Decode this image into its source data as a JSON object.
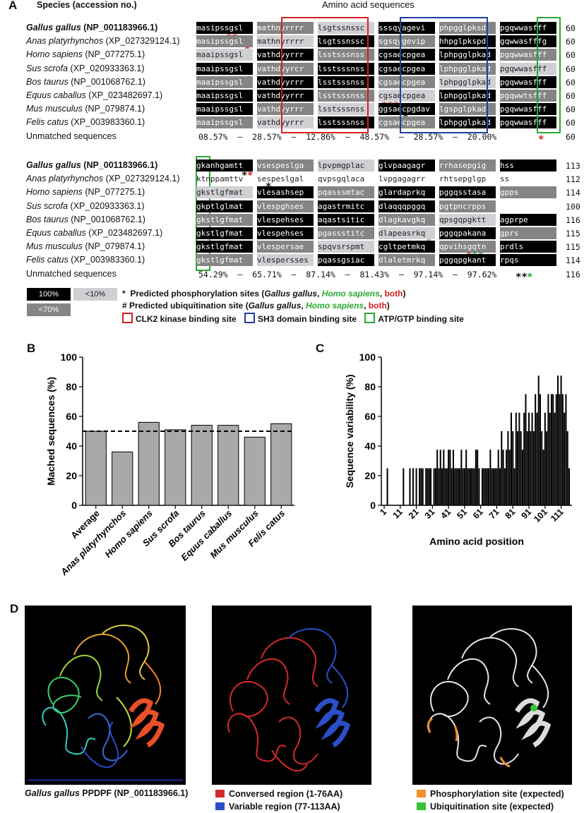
{
  "panelA": {
    "letter": "A",
    "species_header": "Species (accession no.)",
    "seq_header": "Amino acid sequences",
    "block1": {
      "rows": [
        {
          "genus": "Gallus gallus",
          "acc": "(NP_001183966.1)",
          "bold": true,
          "seq": "masipssgsl mathnyrrrr lsgtssnssc sssqyagevi phpgglpksd pgqwwasfff",
          "end": "60"
        },
        {
          "genus": "Anas platyrhynchos",
          "acc": "(XP_027329124.1)",
          "bold": false,
          "seq": "masipssgsl mathnyrrrr lsgtssnssc sgsqygevip hhpglpkspd gqwwasfffg",
          "end": "60"
        },
        {
          "genus": "Homo sapiens",
          "acc": "(NP_077275.1)",
          "bold": false,
          "seq": "maaipssgsl vathdyyrrr lsstsssnss cgsaecpgea lphpgglpkad pgqwwasfff",
          "end": "60"
        },
        {
          "genus": "Sus scrofa",
          "acc": "(XP_020933363.1)",
          "bold": false,
          "seq": "maaipssgsl vathdyyrcr lsstsssnss cgsaecpgea lphpgglpkad pgqwwasfff",
          "end": "60"
        },
        {
          "genus": "Bos taurus",
          "acc": "(NP_001068762.1)",
          "bold": false,
          "seq": "maaipssgsl vathdyyrrr lsstsssnss cgsaecpgea lphpgglpkad pgqwwasfff",
          "end": "60"
        },
        {
          "genus": "Equus caballus",
          "acc": "(XP_023482697.1)",
          "bold": false,
          "seq": "maaipssgsl vathdyyrrr lsstsssnss cgsaecpgea lphpgglpkad pgqwwtsfff",
          "end": "60"
        },
        {
          "genus": "Mus musculus",
          "acc": "(NP_079874.1)",
          "bold": false,
          "seq": "maaipssgsl vathdyyrrr lsstsssnss ggsaecpgdav lgspglpkad pgqwwasfff",
          "end": "60"
        },
        {
          "genus": "Felis catus",
          "acc": "(XP_003983360.1)",
          "bold": false,
          "seq": "maaipssgsl vathdyyrrr lsstsssnss cgsaecpgea lphpgglpkad pgqwwasfff",
          "end": "60"
        }
      ],
      "unmatched": {
        "label": "Unmatched sequences",
        "text": "08.57%  –  28.57%  –  12.86%  –  48.57%  –  28.57%  –  20.00%",
        "end": "60"
      }
    },
    "block2": {
      "rows": [
        {
          "genus": "Gallus gallus",
          "acc": "(NP_001183966.1)",
          "bold": true,
          "seq": "gkanhgamtt vsespeslga lpvpmgplac glvpaagagr rrhasepgig hss",
          "end": "113"
        },
        {
          "genus": "Anas platyrhynchos",
          "acc": "(XP_027329124.1)",
          "bold": false,
          "seq": "ktnppamttv sespeslgal qvpsgqlaca lvpgagagrr rhtsepglgp ss",
          "end": "112"
        },
        {
          "genus": "Homo sapiens",
          "acc": "(NP_077275.1)",
          "bold": false,
          "seq": "gkstlgfmat vlesashsep pqasssmtac glardaprkq pggqsstasa gpps",
          "end": "114"
        },
        {
          "genus": "Sus scrofa",
          "acc": "(XP_020933363.1)",
          "bold": false,
          "seq": "gkptlglmat vlespghses agastrmitc dlaqqqpggq pgtpncrpps",
          "end": "100"
        },
        {
          "genus": "Bos taurus",
          "acc": "(NP_001068762.1)",
          "bold": false,
          "seq": "gkstlgfmat vlespehses aqastsitic dlagkavgkq qpsgqpgktt agprpe",
          "end": "116"
        },
        {
          "genus": "Equus caballus",
          "acc": "(XP_023482697.1)",
          "bold": false,
          "seq": "gkstlgfmat vlespehses pgassstitc dlapeasrkq pggqpakana gprs",
          "end": "115"
        },
        {
          "genus": "Mus musculus",
          "acc": "(NP_079874.1)",
          "bold": false,
          "seq": "gkstlgfmat vlespersae spqvsrspmt cgltpetmkq qpvihsgqtn prdls",
          "end": "115"
        },
        {
          "genus": "Felis catus",
          "acc": "(XP_003983360.1)",
          "bold": false,
          "seq": "gkstlgfmat vlespersses pqassgsiac dlaletmrkq pggqpgkant rpqs",
          "end": "114"
        }
      ],
      "unmatched": {
        "label": "Unmatched sequences",
        "text": "54.29%  –  65.71%  –  87.14%  –  81.43%  –  97.14%  –  97.62%",
        "end": "116"
      }
    },
    "legend": {
      "box100": "100%",
      "box10": "<10%",
      "box70": "<70%",
      "phospho_prefix": "Predicted phosphorylation sites (",
      "ubiq_prefix": "Predicted ubiquitination site  (",
      "sp1": "Gallus gallus",
      "sp2": "Homo sapiens",
      "both": "both",
      "clk2": "CLK2 kinase binding site",
      "sh3": "SH3 domain binding site",
      "atp": "ATP/GTP binding site",
      "colors": {
        "clk2": "#d42020",
        "sh3": "#1f3f9e",
        "atp": "#2aa832"
      }
    }
  },
  "panelB": {
    "letter": "B",
    "chart_data": {
      "type": "bar",
      "categories": [
        "Average",
        "Anas platyrhynchos",
        "Homo sapiens",
        "Sus scrofa",
        "Bos taurus",
        "Equus caballus",
        "Mus musculus",
        "Felis catus"
      ],
      "values": [
        50,
        36,
        56,
        51,
        54,
        54,
        46,
        55
      ],
      "title": "",
      "xlabel": "",
      "ylabel": "Mached sequences (%)",
      "ylim": [
        0,
        100
      ],
      "yticks": [
        "0",
        "20",
        "40",
        "60",
        "80",
        "100"
      ],
      "reference_line": 50,
      "bar_color": "#a9a9a9"
    }
  },
  "panelC": {
    "letter": "C",
    "chart_data": {
      "type": "bar",
      "title": "",
      "xlabel": "Amino acid position",
      "ylabel": "Sequence variability (%)",
      "ylim": [
        0,
        100
      ],
      "xlim": [
        1,
        116
      ],
      "yticks": [
        "0",
        "20",
        "40",
        "60",
        "80",
        "100"
      ],
      "xticks": [
        "1",
        "11",
        "21",
        "31",
        "41",
        "51",
        "61",
        "71",
        "81",
        "91",
        "101",
        "111"
      ],
      "positions_start": 1,
      "values": [
        0,
        0,
        25,
        0,
        0,
        0,
        0,
        0,
        0,
        0,
        0,
        0,
        25,
        0,
        0,
        0,
        25,
        0,
        25,
        0,
        25,
        0,
        25,
        25,
        25,
        0,
        25,
        25,
        25,
        25,
        0,
        25,
        25,
        37.5,
        25,
        37.5,
        25,
        37.5,
        25,
        25,
        37.5,
        37.5,
        25,
        37.5,
        25,
        25,
        25,
        25,
        37.5,
        25,
        25,
        37.5,
        25,
        25,
        25,
        25,
        25,
        37.5,
        37.5,
        25,
        0,
        25,
        25,
        25,
        25,
        25,
        37.5,
        25,
        25,
        25,
        25,
        37.5,
        25,
        50,
        37.5,
        25,
        37.5,
        50,
        37.5,
        62.5,
        50,
        25,
        62.5,
        50,
        62.5,
        50,
        37.5,
        62.5,
        75,
        50,
        62.5,
        50,
        62.5,
        50,
        75,
        62.5,
        87.5,
        75,
        50,
        37.5,
        62.5,
        50,
        75,
        62.5,
        75,
        75,
        62.5,
        75,
        87.5,
        75,
        87.5,
        75,
        62.5,
        75,
        50,
        25
      ]
    }
  },
  "panelD": {
    "letter": "D",
    "caption_genus": "Gallus gallus",
    "caption_rest": " PPDPF (NP_001183966.1)",
    "legend_mid": [
      {
        "label": "Conversed region (1-76AA)",
        "color": "#d42a2a"
      },
      {
        "label": "Variable region (77-113AA)",
        "color": "#2a4fc8"
      }
    ],
    "legend_right": [
      {
        "label": "Phosphorylation site (expected)",
        "color": "#f0902a"
      },
      {
        "label": "Ubiquitination site (expected)",
        "color": "#35c33a"
      }
    ]
  }
}
